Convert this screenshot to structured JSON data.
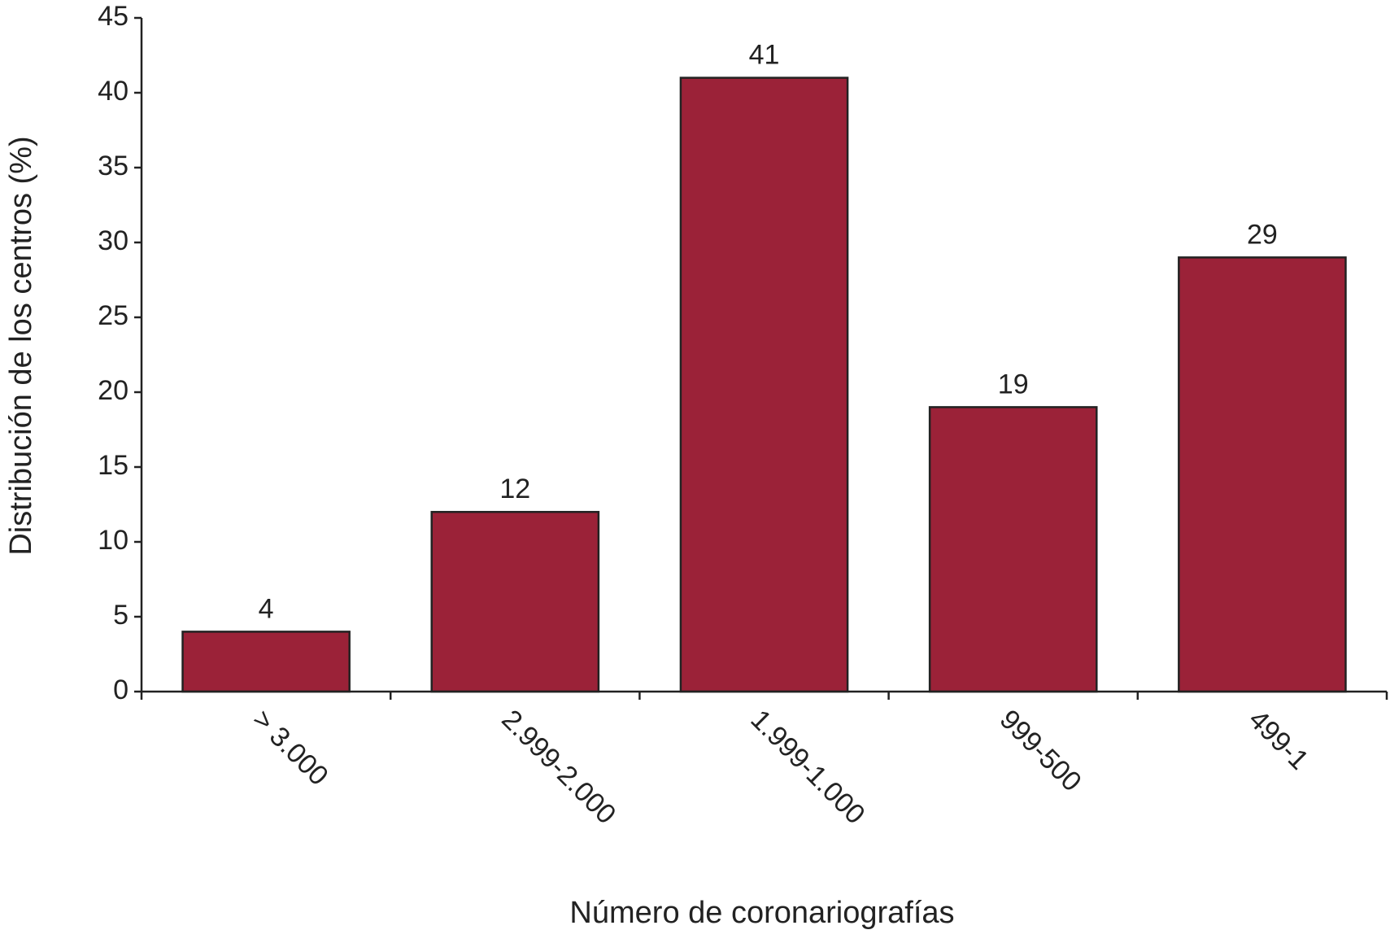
{
  "chart_data": {
    "type": "bar",
    "x_label": "Número de coronariografías",
    "y_label": "Distribución de los centros (%)",
    "categories": [
      "> 3.000",
      "2.999-2.000",
      "1.999-1.000",
      "999-500",
      "499-1"
    ],
    "values": [
      4,
      12,
      41,
      19,
      29
    ],
    "color": "#9b2238",
    "ylim": [
      0,
      45
    ],
    "yticks": [
      0,
      5,
      10,
      15,
      20,
      25,
      30,
      35,
      40,
      45
    ],
    "grid": false
  }
}
